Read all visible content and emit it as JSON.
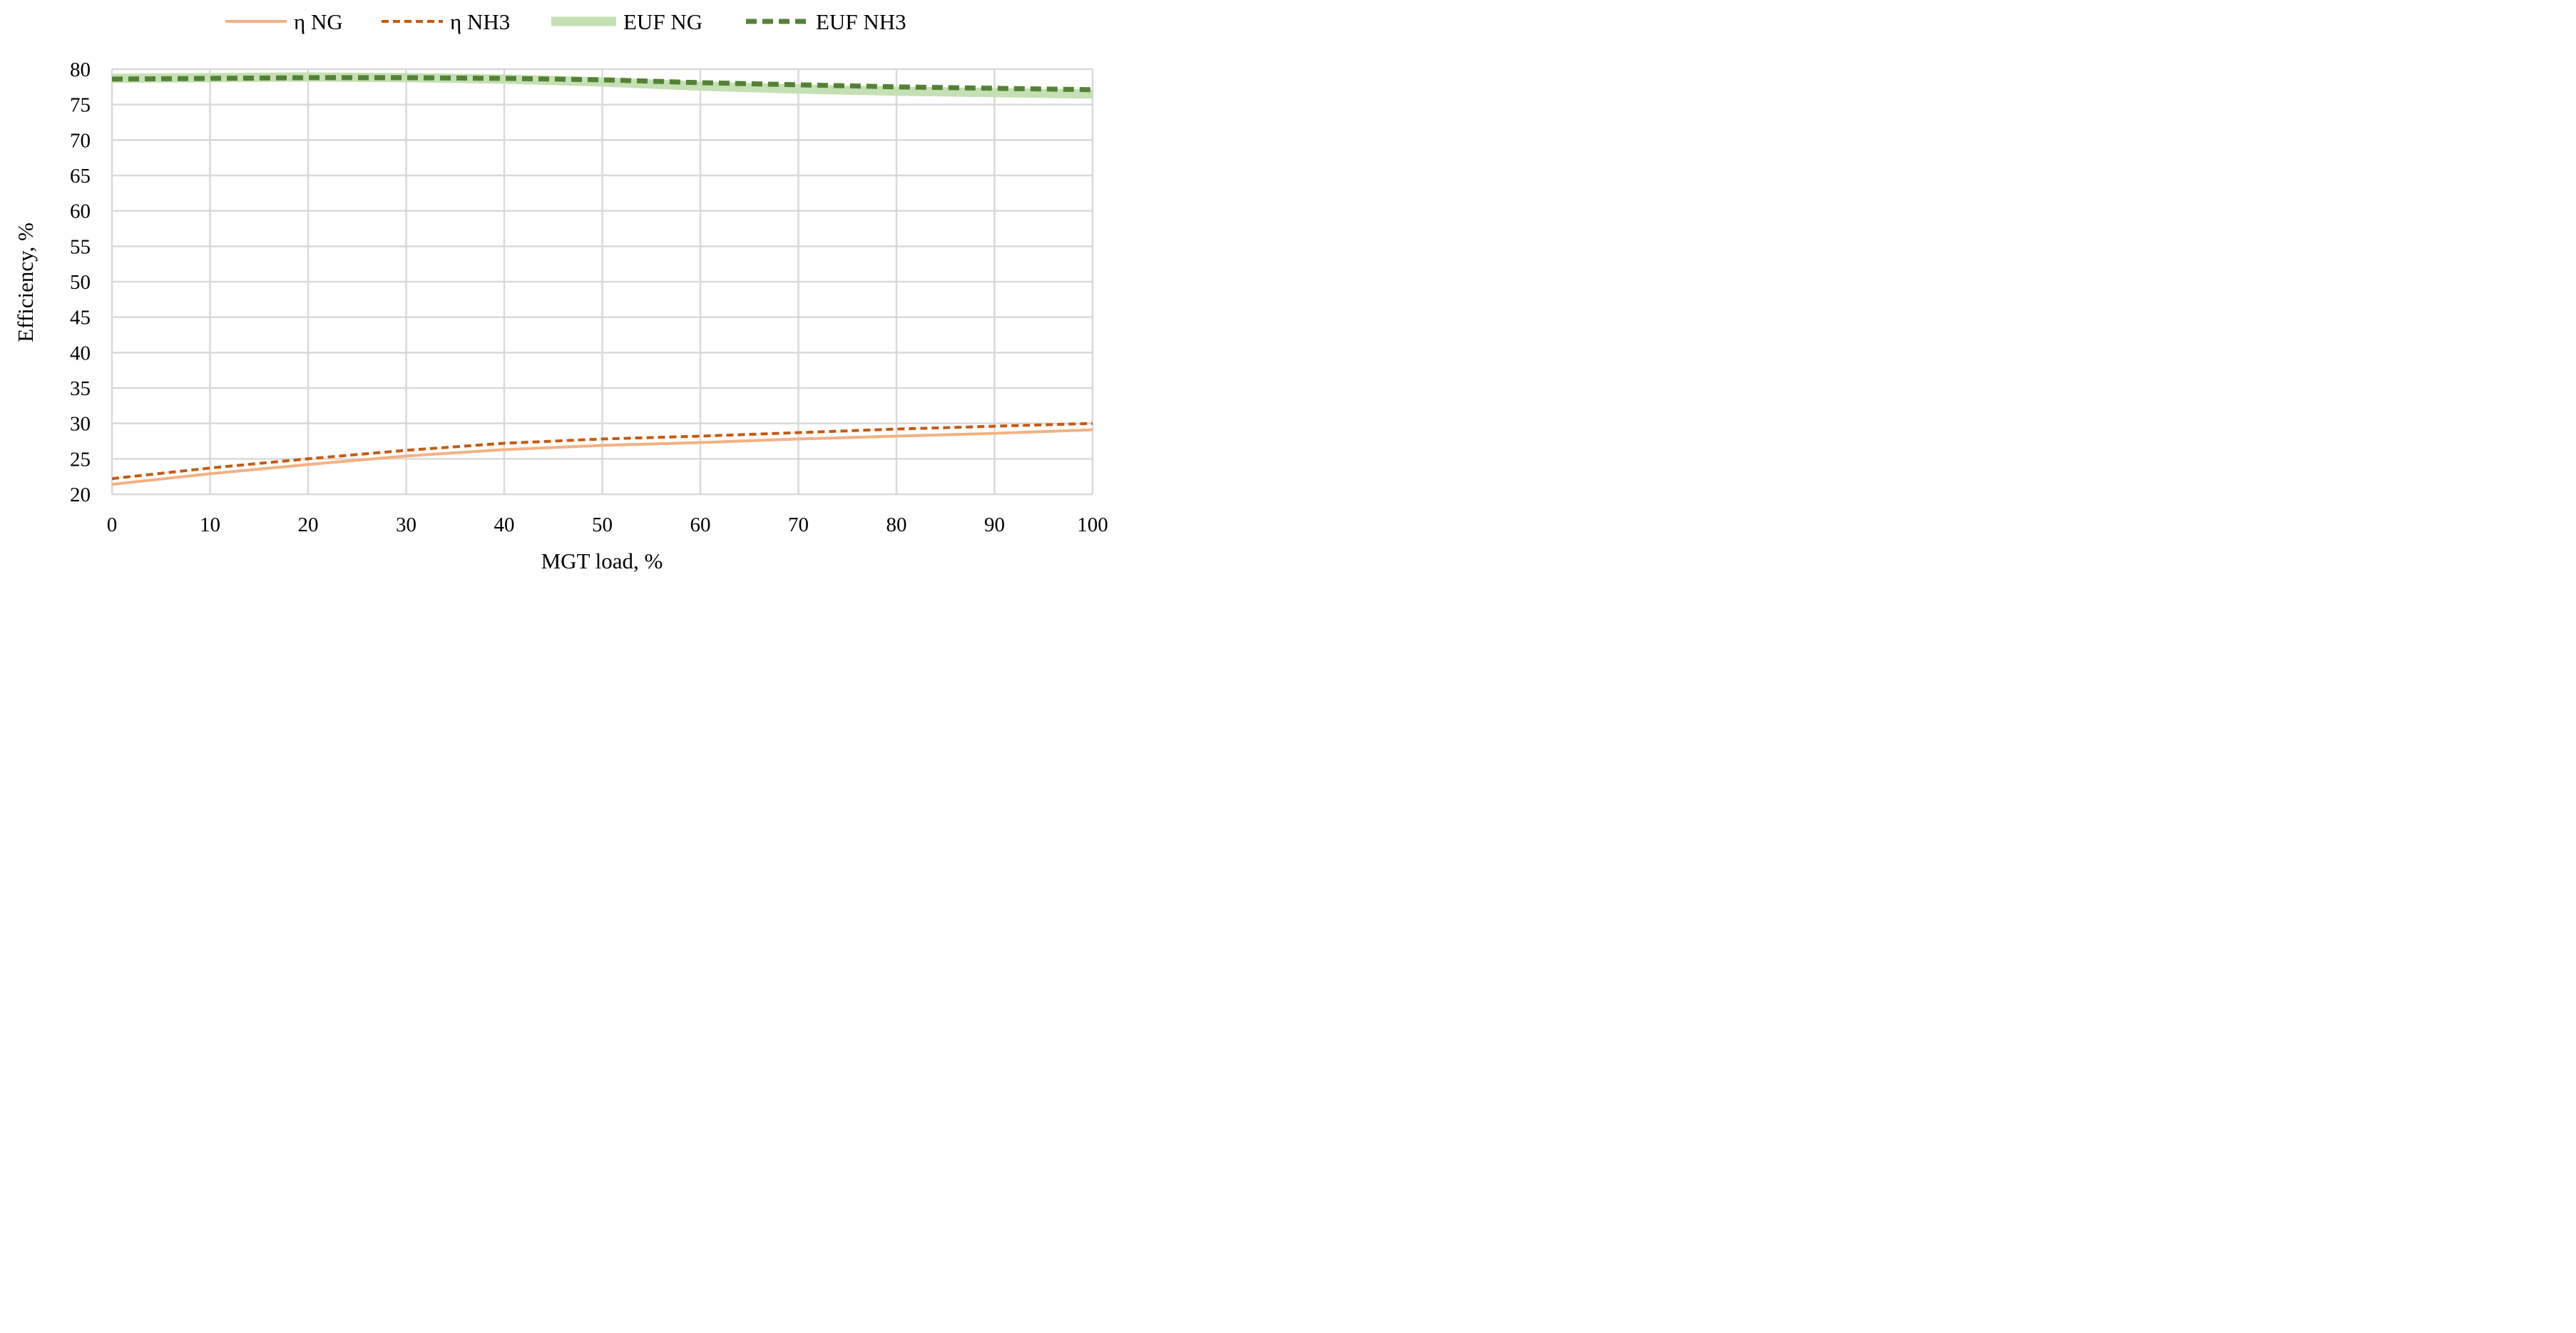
{
  "chart_data": {
    "type": "line",
    "title": "",
    "xlabel": "MGT load, %",
    "ylabel": "Efficiency, %",
    "xlim": [
      0,
      100
    ],
    "ylim": [
      20,
      80
    ],
    "xticks": [
      0,
      10,
      20,
      30,
      40,
      50,
      60,
      70,
      80,
      90,
      100
    ],
    "yticks": [
      20,
      25,
      30,
      35,
      40,
      45,
      50,
      55,
      60,
      65,
      70,
      75,
      80
    ],
    "grid": true,
    "legend_position": "top",
    "x": [
      0,
      10,
      20,
      30,
      40,
      50,
      60,
      70,
      80,
      90,
      100
    ],
    "series": [
      {
        "name": "η NG",
        "values": [
          21.4,
          22.9,
          24.2,
          25.4,
          26.3,
          26.9,
          27.3,
          27.8,
          28.2,
          28.6,
          29.1
        ],
        "color": "#f4b183",
        "style": "solid"
      },
      {
        "name": "η NH3",
        "values": [
          22.2,
          23.7,
          25.0,
          26.2,
          27.2,
          27.8,
          28.2,
          28.7,
          29.2,
          29.6,
          30.0
        ],
        "color": "#c55a11",
        "style": "dashed"
      },
      {
        "name": "EUF NG",
        "values": [
          78.7,
          78.8,
          78.9,
          78.8,
          78.6,
          78.2,
          77.6,
          77.2,
          76.9,
          76.7,
          76.5
        ],
        "color": "#c5e0b4",
        "style": "solid-thick"
      },
      {
        "name": "EUF NH3",
        "values": [
          78.6,
          78.7,
          78.8,
          78.8,
          78.7,
          78.5,
          78.1,
          77.8,
          77.5,
          77.3,
          77.1
        ],
        "color": "#548235",
        "style": "dashed-thick"
      }
    ]
  }
}
